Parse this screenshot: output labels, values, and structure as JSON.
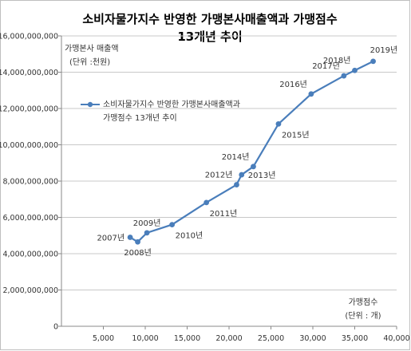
{
  "chart_data": {
    "type": "line",
    "title_line1": "소비자물가지수 반영한 가맹본사매출액과 가맹점수",
    "title_line2": "13개년 추이",
    "ylabel_line1": "가맹본사 매출액",
    "ylabel_line2": "(단위 :천원)",
    "xlabel_line1": "가맹점수",
    "xlabel_line2": "(단위 : 개)",
    "legend_line1": "소비자물가지수 반영한 가맹본사매출액과",
    "legend_line2": "가맹점수 13개년 추이",
    "xlim": [
      0,
      40000
    ],
    "ylim": [
      0,
      16000000000
    ],
    "grid": "horizontal",
    "legend_position": "top-left",
    "line_color": "#4a7ebb",
    "x_ticks": [
      "5,000",
      "10,000",
      "15,000",
      "20,000",
      "25,000",
      "30,000",
      "35,000",
      "40,000"
    ],
    "x_tick_values": [
      5000,
      10000,
      15000,
      20000,
      25000,
      30000,
      35000,
      40000
    ],
    "y_ticks": [
      "0",
      "2,000,000,000",
      "4,000,000,000",
      "6,000,000,000",
      "8,000,000,000",
      "10,000,000,000",
      "12,000,000,000",
      "14,000,000,000",
      "16,000,000,000"
    ],
    "y_tick_values": [
      0,
      2000000000,
      4000000000,
      6000000000,
      8000000000,
      10000000000,
      12000000000,
      14000000000,
      16000000000
    ],
    "points": [
      {
        "year": "2007년",
        "x": 8200,
        "y": 4900000000,
        "label_pos": "left"
      },
      {
        "year": "2008년",
        "x": 9100,
        "y": 4650000000,
        "label_pos": "below"
      },
      {
        "year": "2009년",
        "x": 10200,
        "y": 5150000000,
        "label_pos": "above"
      },
      {
        "year": "2010년",
        "x": 13200,
        "y": 5600000000,
        "label_pos": "below-right"
      },
      {
        "year": "2011년",
        "x": 17300,
        "y": 6820000000,
        "label_pos": "below-right"
      },
      {
        "year": "2012년",
        "x": 20900,
        "y": 7800000000,
        "label_pos": "above-left"
      },
      {
        "year": "2013년",
        "x": 21500,
        "y": 8350000000,
        "label_pos": "right"
      },
      {
        "year": "2014년",
        "x": 22900,
        "y": 8800000000,
        "label_pos": "above-left"
      },
      {
        "year": "2015년",
        "x": 25900,
        "y": 11150000000,
        "label_pos": "below-right"
      },
      {
        "year": "2016년",
        "x": 29800,
        "y": 12800000000,
        "label_pos": "above-left"
      },
      {
        "year": "2017년",
        "x": 33700,
        "y": 13800000000,
        "label_pos": "above-left"
      },
      {
        "year": "2018년",
        "x": 35000,
        "y": 14100000000,
        "label_pos": "above-left"
      },
      {
        "year": "2019년",
        "x": 37200,
        "y": 14600000000,
        "label_pos": "above-right"
      }
    ]
  }
}
